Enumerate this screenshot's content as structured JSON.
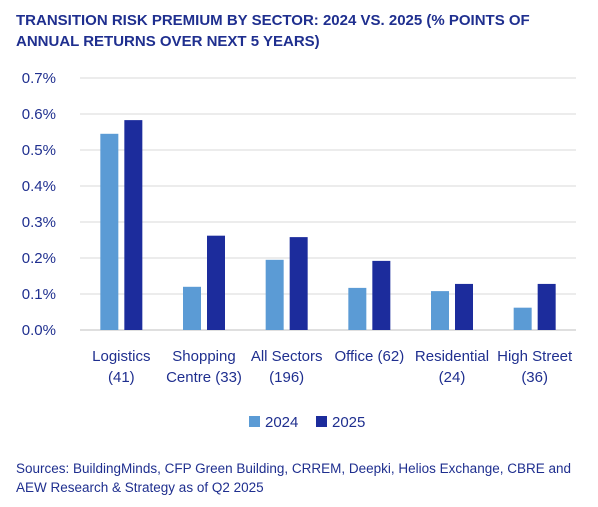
{
  "title": "TRANSITION RISK PREMIUM BY SECTOR: 2024 VS. 2025 (% POINTS OF ANNUAL RETURNS OVER NEXT 5 YEARS)",
  "source": "Sources: BuildingMinds, CFP Green Building, CRREM, Deepki, Helios Exchange, CBRE and AEW Research & Strategy as of Q2 2025",
  "colors": {
    "series_2024": "#5b9bd5",
    "series_2025": "#1c2c9c",
    "text": "#1f2f8f",
    "grid": "#d9d9d9"
  },
  "chart_data": {
    "type": "bar",
    "title": "TRANSITION RISK PREMIUM BY SECTOR: 2024 VS. 2025 (% POINTS OF ANNUAL RETURNS OVER NEXT 5 YEARS)",
    "categories": [
      [
        "Logistics",
        "(41)"
      ],
      [
        "Shopping",
        "Centre (33)"
      ],
      [
        "All Sectors",
        "(196)"
      ],
      [
        "Office (62)"
      ],
      [
        "Residential",
        "(24)"
      ],
      [
        "High Street",
        "(36)"
      ]
    ],
    "series": [
      {
        "name": "2024",
        "values": [
          0.545,
          0.12,
          0.195,
          0.117,
          0.108,
          0.062
        ]
      },
      {
        "name": "2025",
        "values": [
          0.583,
          0.262,
          0.258,
          0.192,
          0.128,
          0.128
        ]
      }
    ],
    "y_ticks": [
      "0.0%",
      "0.1%",
      "0.2%",
      "0.3%",
      "0.4%",
      "0.5%",
      "0.6%",
      "0.7%"
    ],
    "ylim": [
      0,
      0.7
    ],
    "grid": true,
    "legend_position": "bottom"
  }
}
